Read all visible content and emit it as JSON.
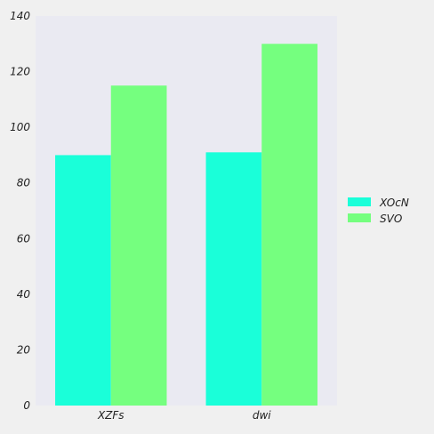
{
  "chart_data": {
    "type": "bar",
    "categories": [
      "XZFs",
      "dwi"
    ],
    "series": [
      {
        "name": "XOcN",
        "values": [
          90,
          91
        ],
        "color": "#1affd9"
      },
      {
        "name": "SVO",
        "values": [
          115,
          130
        ],
        "color": "#75ff7f"
      }
    ],
    "title": "",
    "xlabel": "",
    "ylabel": "",
    "ylim": [
      0,
      140
    ],
    "yticks": [
      0,
      20,
      40,
      60,
      80,
      100,
      120,
      140
    ],
    "grid": false,
    "legend": "right",
    "plot_background": "#eaeaf2"
  }
}
